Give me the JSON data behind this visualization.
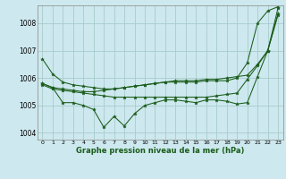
{
  "bg_color": "#cde8ee",
  "grid_color": "#a8cccc",
  "line_color": "#1a5c1a",
  "xlabel": "Graphe pression niveau de la mer (hPa)",
  "ylim": [
    1003.75,
    1008.65
  ],
  "xlim": [
    -0.5,
    23.5
  ],
  "yticks": [
    1004,
    1005,
    1006,
    1007,
    1008
  ],
  "xticks": [
    0,
    1,
    2,
    3,
    4,
    5,
    6,
    7,
    8,
    9,
    10,
    11,
    12,
    13,
    14,
    15,
    16,
    17,
    18,
    19,
    20,
    21,
    22,
    23
  ],
  "series": [
    [
      1006.7,
      1006.15,
      1005.85,
      1005.75,
      1005.7,
      1005.65,
      1005.6,
      1005.6,
      1005.65,
      1005.7,
      1005.75,
      1005.8,
      1005.85,
      1005.85,
      1005.85,
      1005.85,
      1005.9,
      1005.9,
      1005.9,
      1006.0,
      1006.55,
      1008.0,
      1008.45,
      1008.6
    ],
    [
      1005.8,
      1005.65,
      1005.6,
      1005.55,
      1005.5,
      1005.5,
      1005.55,
      1005.6,
      1005.65,
      1005.7,
      1005.75,
      1005.8,
      1005.85,
      1005.9,
      1005.9,
      1005.9,
      1005.95,
      1005.95,
      1006.0,
      1006.05,
      1006.1,
      1006.5,
      1007.0,
      1008.55
    ],
    [
      1005.75,
      1005.6,
      1005.55,
      1005.5,
      1005.45,
      1005.4,
      1005.35,
      1005.3,
      1005.3,
      1005.3,
      1005.3,
      1005.3,
      1005.3,
      1005.3,
      1005.3,
      1005.3,
      1005.3,
      1005.35,
      1005.4,
      1005.45,
      1005.95,
      1006.45,
      1007.0,
      1008.35
    ],
    [
      1005.8,
      1005.65,
      1005.1,
      1005.1,
      1005.0,
      1004.85,
      1004.2,
      1004.6,
      1004.25,
      1004.7,
      1005.0,
      1005.1,
      1005.2,
      1005.2,
      1005.15,
      1005.1,
      1005.2,
      1005.2,
      1005.15,
      1005.05,
      1005.1,
      1006.05,
      1007.0,
      1008.3
    ]
  ]
}
